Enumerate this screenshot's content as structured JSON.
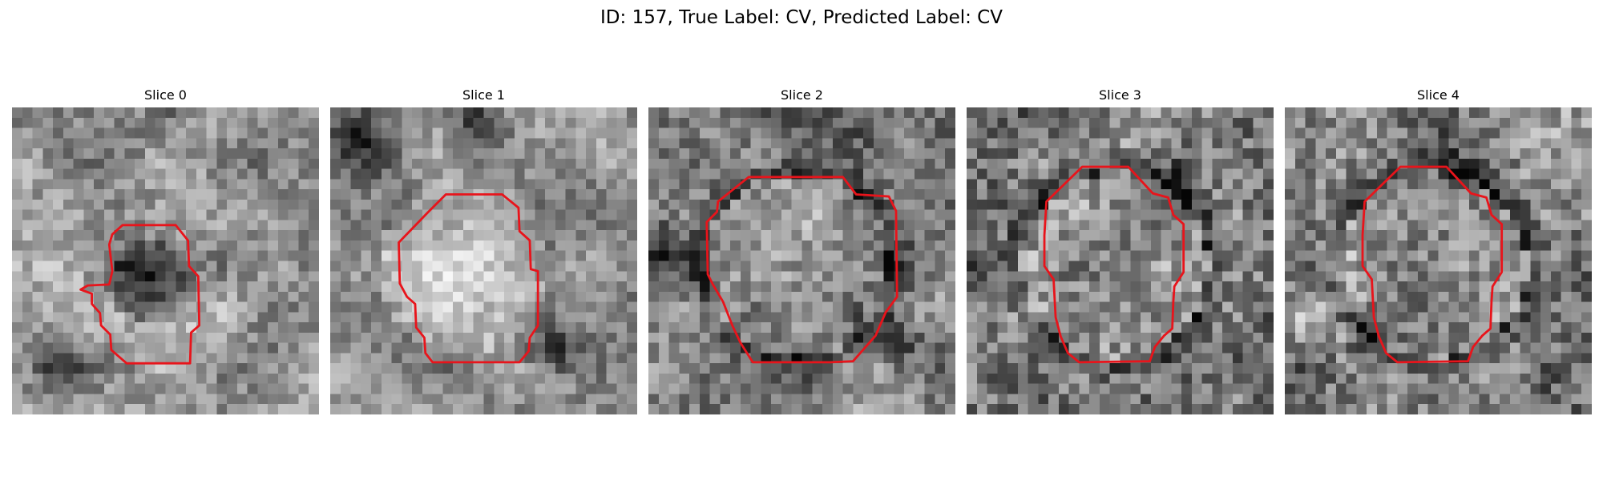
{
  "figure": {
    "title": "ID: 157, True Label: CV, Predicted Label: CV"
  },
  "colors": {
    "background": "#ffffff",
    "contour": "#e8141b",
    "image_colormap": "grayscale"
  },
  "panels": [
    {
      "title": "Slice 0"
    },
    {
      "title": "Slice 1"
    },
    {
      "title": "Slice 2"
    },
    {
      "title": "Slice 3"
    },
    {
      "title": "Slice 4"
    }
  ]
}
